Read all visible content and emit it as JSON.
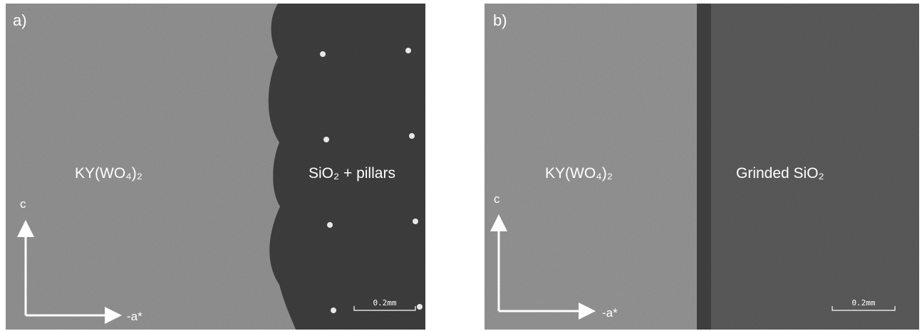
{
  "panels": [
    {
      "label": "a)",
      "left_region": "KY(WO₄)₂",
      "right_region": "SiO₂ + pillars",
      "axis_up": "c",
      "axis_right": "-a*",
      "scale_bar": "0.2mm"
    },
    {
      "label": "b)",
      "left_region": "KY(WO₄)₂",
      "right_region": "Grinded SiO₂",
      "axis_up": "c",
      "axis_right": "-a*",
      "scale_bar": "0.2mm"
    }
  ]
}
